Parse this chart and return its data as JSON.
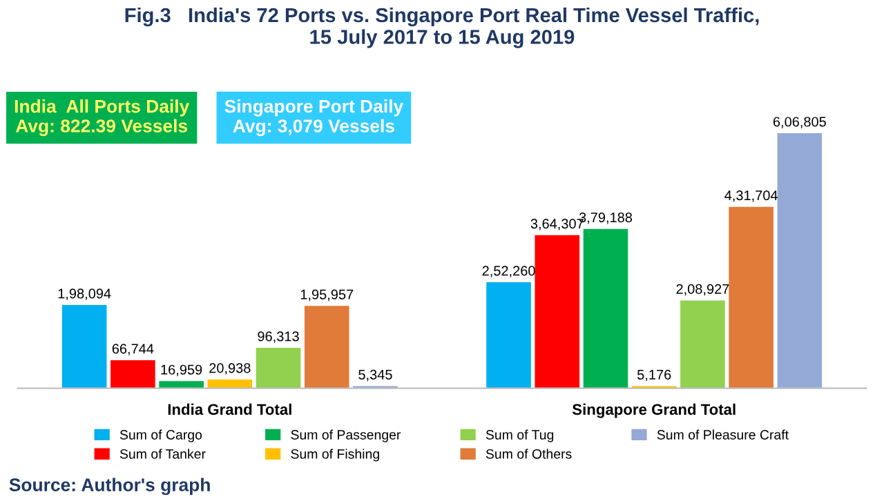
{
  "chart_data": {
    "type": "bar",
    "title": "Fig.3   India's 72 Ports vs. Singapore Port Real Time Vessel Traffic,\n15 July 2017 to 15 Aug 2019",
    "categories": [
      "India Grand Total",
      "Singapore Grand Total"
    ],
    "series": [
      {
        "name": "Sum of Cargo",
        "color": "#00b0f0",
        "values": [
          198094,
          252260
        ],
        "value_labels": [
          "1,98,094",
          "2,52,260"
        ]
      },
      {
        "name": "Sum of Tanker",
        "color": "#ff0000",
        "values": [
          66744,
          364307
        ],
        "value_labels": [
          "66,744",
          "3,64,307"
        ]
      },
      {
        "name": "Sum of Passenger",
        "color": "#00b050",
        "values": [
          16959,
          379188
        ],
        "value_labels": [
          "16,959",
          "3,79,188"
        ]
      },
      {
        "name": "Sum of Fishing",
        "color": "#ffc000",
        "values": [
          20938,
          5176
        ],
        "value_labels": [
          "20,938",
          "5,176"
        ]
      },
      {
        "name": "Sum of Tug",
        "color": "#92d050",
        "values": [
          96313,
          208927
        ],
        "value_labels": [
          "96,313",
          "2,08,927"
        ]
      },
      {
        "name": "Sum of Others",
        "color": "#e07b39",
        "values": [
          195957,
          431704
        ],
        "value_labels": [
          "1,95,957",
          "4,31,704"
        ]
      },
      {
        "name": "Sum of Pleasure Craft",
        "color": "#95a9d6",
        "values": [
          5345,
          606805
        ],
        "value_labels": [
          "5,345",
          "6,06,805"
        ]
      }
    ],
    "annotations": [
      "India  All Ports Daily\nAvg: 822.39 Vessels",
      "Singapore Port Daily\nAvg: 3,079 Vessels",
      "Source: Author's graph"
    ],
    "legend": "bottom",
    "grid": false
  }
}
